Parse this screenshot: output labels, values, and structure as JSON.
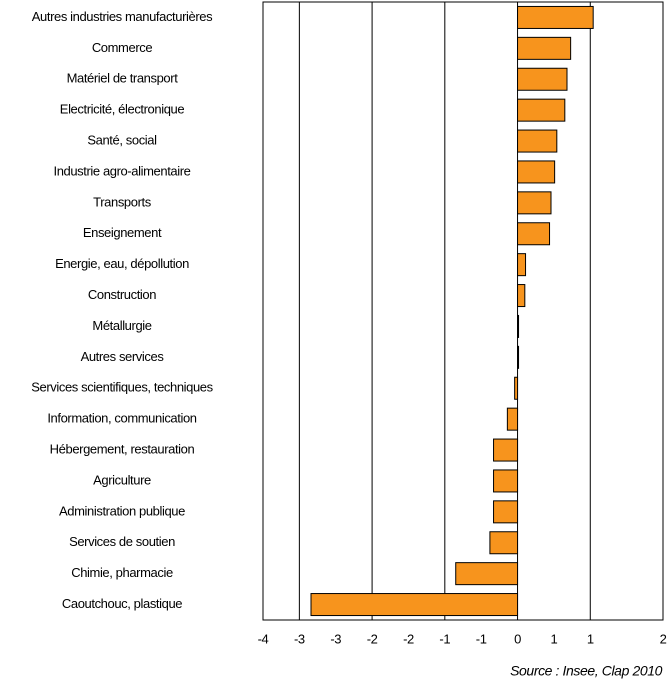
{
  "chart_data": {
    "type": "barh",
    "categories": [
      "Autres industries manufacturières",
      "Commerce",
      "Matériel de transport",
      "Electricité, électronique",
      "Santé, social",
      "Industrie agro-alimentaire",
      "Transports",
      "Enseignement",
      "Energie, eau, dépollution",
      "Construction",
      "Métallurgie",
      "Autres services",
      "Services scientifiques, techniques",
      "Information, communication",
      "Hébergement, restauration",
      "Agriculture",
      "Administration publique",
      "Services de soutien",
      "Chimie, pharmacie",
      "Caoutchouc, plastique"
    ],
    "values": [
      1.04,
      0.73,
      0.68,
      0.65,
      0.54,
      0.51,
      0.46,
      0.44,
      0.11,
      0.1,
      0.01,
      0.01,
      -0.04,
      -0.14,
      -0.33,
      -0.33,
      -0.33,
      -0.38,
      -0.85,
      -2.84
    ],
    "color": "#f7941d",
    "xlim": [
      -3.5,
      2
    ],
    "xticks": [
      {
        "value": -3.5,
        "label": "-4"
      },
      -3,
      {
        "value": -2.5,
        "label": "-3"
      },
      -2,
      {
        "value": -1.5,
        "label": "-2"
      },
      -1,
      {
        "value": -0.5,
        "label": "-1"
      },
      0,
      {
        "value": 0.5,
        "label": "1"
      },
      1,
      2
    ],
    "grid": true,
    "source": "Source : Insee, Clap 2010"
  }
}
